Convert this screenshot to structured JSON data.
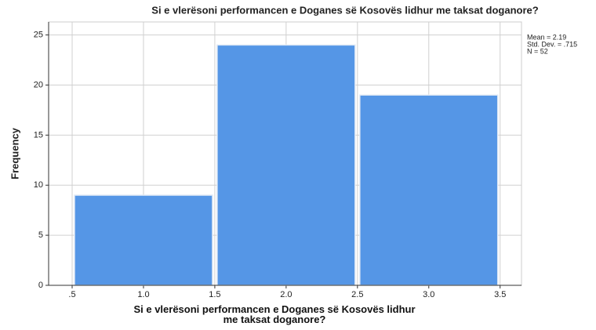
{
  "chart_data": {
    "type": "histogram",
    "title": "Si e vlerësoni performancen e Doganes së Kosovës lidhur me taksat doganore?",
    "x_label": "Si e vlerësoni performancen e Doganes së Kosovës lidhur me taksat doganore?",
    "y_label": "Frequency",
    "bins": [
      0.5,
      1.5,
      2.5,
      3.5
    ],
    "values": [
      9,
      24,
      19
    ],
    "color": "#5596e6",
    "xlim": [
      0.335,
      3.65
    ],
    "ylim": [
      0,
      26.3
    ],
    "xticks": [
      {
        "value": 0.5,
        "label": ".5"
      },
      {
        "value": 1,
        "label": "1.0"
      },
      1.5,
      {
        "value": 2,
        "label": "2.0"
      },
      2.5,
      {
        "value": 3,
        "label": "3.0"
      },
      3.5
    ],
    "yticks": [
      0,
      5,
      10,
      15,
      20,
      25
    ],
    "grid": true,
    "annotations": [
      "Mean = 2.19",
      "Std. Dev. = .715",
      "N = 52"
    ]
  }
}
